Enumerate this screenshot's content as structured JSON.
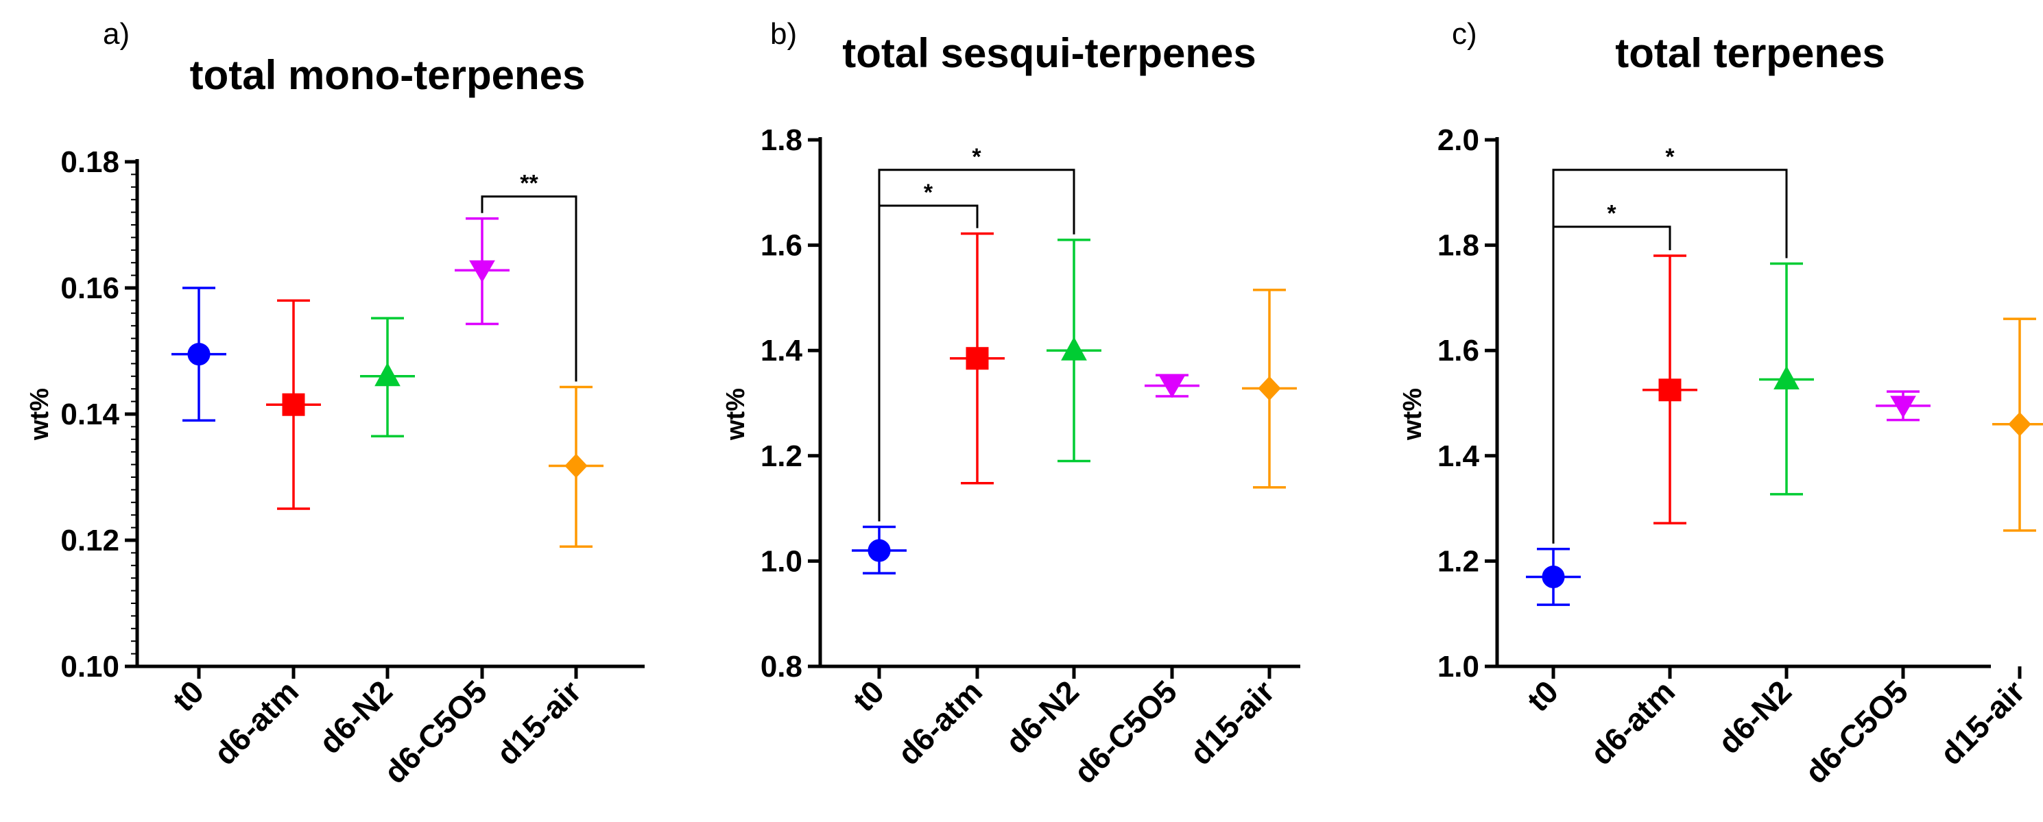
{
  "chart_data": [
    {
      "type": "scatter",
      "panel_label": "a)",
      "title": "total mono-terpenes",
      "xlabel": "",
      "ylabel": "wt%",
      "ylim": [
        0.1,
        0.18
      ],
      "yticks": [
        0.1,
        0.12,
        0.14,
        0.16,
        0.18
      ],
      "ytick_labels": [
        "0.10",
        "0.12",
        "0.14",
        "0.16",
        "0.18"
      ],
      "categories": [
        "t0",
        "d6-atm",
        "d6-N2",
        "d6-C5O5",
        "d15-air"
      ],
      "series": [
        {
          "name": "t0",
          "color": "#0000ff",
          "marker": "circle",
          "mean": 0.1495,
          "lower": 0.139,
          "upper": 0.16
        },
        {
          "name": "d6-atm",
          "color": "#ff0000",
          "marker": "square",
          "mean": 0.1415,
          "lower": 0.125,
          "upper": 0.158
        },
        {
          "name": "d6-N2",
          "color": "#00cc33",
          "marker": "triangle-up",
          "mean": 0.146,
          "lower": 0.1365,
          "upper": 0.1552
        },
        {
          "name": "d6-C5O5",
          "color": "#dd00ff",
          "marker": "triangle-down",
          "mean": 0.1628,
          "lower": 0.1543,
          "upper": 0.171
        },
        {
          "name": "d15-air",
          "color": "#ff9900",
          "marker": "diamond",
          "mean": 0.1318,
          "lower": 0.119,
          "upper": 0.1443
        }
      ],
      "significance": [
        {
          "from": "d6-C5O5",
          "to": "d15-air",
          "label": "**",
          "y": 0.1745
        }
      ]
    },
    {
      "type": "scatter",
      "panel_label": "b)",
      "title": "total sesqui-terpenes",
      "xlabel": "",
      "ylabel": "wt%",
      "ylim": [
        0.8,
        1.8
      ],
      "yticks": [
        0.8,
        1.0,
        1.2,
        1.4,
        1.6,
        1.8
      ],
      "ytick_labels": [
        "0.8",
        "1.0",
        "1.2",
        "1.4",
        "1.6",
        "1.8"
      ],
      "categories": [
        "t0",
        "d6-atm",
        "d6-N2",
        "d6-C5O5",
        "d15-air"
      ],
      "series": [
        {
          "name": "t0",
          "color": "#0000ff",
          "marker": "circle",
          "mean": 1.02,
          "lower": 0.977,
          "upper": 1.065
        },
        {
          "name": "d6-atm",
          "color": "#ff0000",
          "marker": "square",
          "mean": 1.385,
          "lower": 1.148,
          "upper": 1.622
        },
        {
          "name": "d6-N2",
          "color": "#00cc33",
          "marker": "triangle-up",
          "mean": 1.4,
          "lower": 1.19,
          "upper": 1.61
        },
        {
          "name": "d6-C5O5",
          "color": "#dd00ff",
          "marker": "triangle-down",
          "mean": 1.333,
          "lower": 1.313,
          "upper": 1.353
        },
        {
          "name": "d15-air",
          "color": "#ff9900",
          "marker": "diamond",
          "mean": 1.328,
          "lower": 1.14,
          "upper": 1.515
        }
      ],
      "significance": [
        {
          "from": "t0",
          "to": "d6-atm",
          "label": "*",
          "y": 1.675
        },
        {
          "from": "t0",
          "to": "d6-N2",
          "label": "*",
          "y": 1.743
        }
      ]
    },
    {
      "type": "scatter",
      "panel_label": "c)",
      "title": "total terpenes",
      "xlabel": "",
      "ylabel": "wt%",
      "ylim": [
        1.0,
        2.0
      ],
      "yticks": [
        1.0,
        1.2,
        1.4,
        1.6,
        1.8,
        2.0
      ],
      "ytick_labels": [
        "1.0",
        "1.2",
        "1.4",
        "1.6",
        "1.8",
        "2.0"
      ],
      "categories": [
        "t0",
        "d6-atm",
        "d6-N2",
        "d6-C5O5",
        "d15-air"
      ],
      "series": [
        {
          "name": "t0",
          "color": "#0000ff",
          "marker": "circle",
          "mean": 1.17,
          "lower": 1.117,
          "upper": 1.223
        },
        {
          "name": "d6-atm",
          "color": "#ff0000",
          "marker": "square",
          "mean": 1.525,
          "lower": 1.272,
          "upper": 1.78
        },
        {
          "name": "d6-N2",
          "color": "#00cc33",
          "marker": "triangle-up",
          "mean": 1.545,
          "lower": 1.327,
          "upper": 1.765
        },
        {
          "name": "d6-C5O5",
          "color": "#dd00ff",
          "marker": "triangle-down",
          "mean": 1.495,
          "lower": 1.468,
          "upper": 1.522
        },
        {
          "name": "d15-air",
          "color": "#ff9900",
          "marker": "diamond",
          "mean": 1.46,
          "lower": 1.258,
          "upper": 1.66
        }
      ],
      "significance": [
        {
          "from": "t0",
          "to": "d6-atm",
          "label": "*",
          "y": 1.835
        },
        {
          "from": "t0",
          "to": "d6-N2",
          "label": "*",
          "y": 1.943
        }
      ]
    }
  ]
}
